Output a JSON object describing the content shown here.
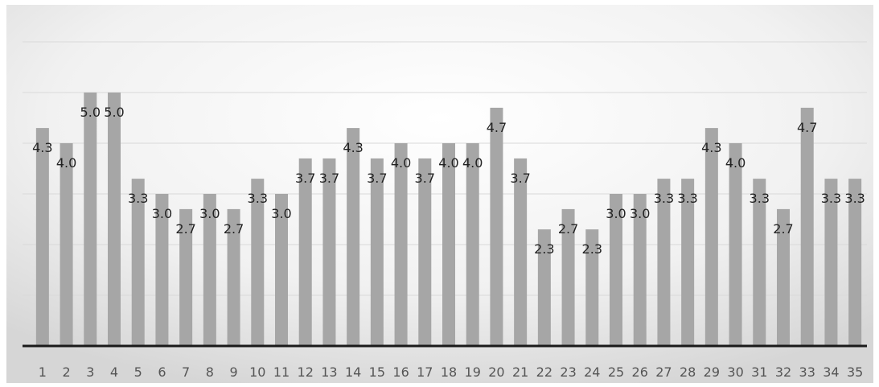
{
  "chart_data": {
    "type": "bar",
    "title": "",
    "xlabel": "",
    "ylabel": "",
    "categories": [
      "1",
      "2",
      "3",
      "4",
      "5",
      "6",
      "7",
      "8",
      "9",
      "10",
      "11",
      "12",
      "13",
      "14",
      "15",
      "16",
      "17",
      "18",
      "19",
      "20",
      "21",
      "22",
      "23",
      "24",
      "25",
      "26",
      "27",
      "28",
      "29",
      "30",
      "31",
      "32",
      "33",
      "34",
      "35"
    ],
    "values": [
      4.3,
      4.0,
      5.0,
      5.0,
      3.3,
      3.0,
      2.7,
      3.0,
      2.7,
      3.3,
      3.0,
      3.7,
      3.7,
      4.3,
      3.7,
      4.0,
      3.7,
      4.0,
      4.0,
      4.7,
      3.7,
      2.3,
      2.7,
      2.3,
      3.0,
      3.0,
      3.3,
      3.3,
      4.3,
      4.0,
      3.3,
      2.7,
      4.7,
      3.3,
      3.3
    ],
    "value_labels": [
      "4.3",
      "4.0",
      "5.0",
      "5.0",
      "3.3",
      "3.0",
      "2.7",
      "3.0",
      "2.7",
      "3.3",
      "3.0",
      "3.7",
      "3.7",
      "4.3",
      "3.7",
      "4.0",
      "3.7",
      "4.0",
      "4.0",
      "4.7",
      "3.7",
      "2.3",
      "2.7",
      "2.3",
      "3.0",
      "3.0",
      "3.3",
      "3.3",
      "4.3",
      "4.0",
      "3.3",
      "2.7",
      "4.7",
      "3.3",
      "3.3"
    ],
    "ylim": [
      0,
      6
    ],
    "grid": true,
    "legend": "none",
    "colors": {
      "bar": "#a6a6a6",
      "grid": "#d9d9d9",
      "axis": "#1a1a1a",
      "label": "#222222",
      "tick_label": "#555555",
      "background_light": "#ffffff",
      "background_dark": "#d8d8d8"
    }
  }
}
